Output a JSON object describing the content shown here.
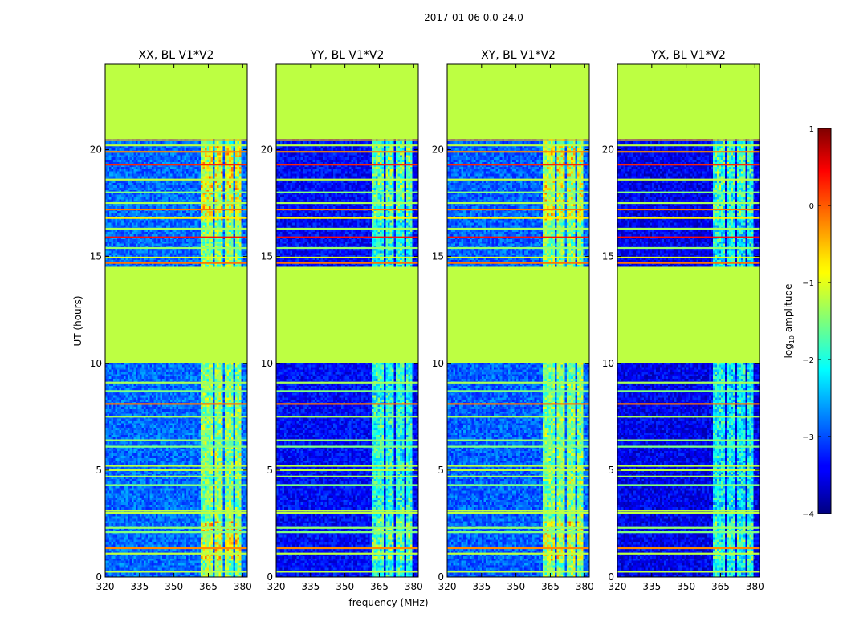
{
  "chart_data": {
    "type": "heatmap",
    "suptitle": "2017-01-06 0.0-24.0",
    "xlabel": "frequency (MHz)",
    "ylabel": "UT (hours)",
    "xlim": [
      320,
      382
    ],
    "ylim": [
      0,
      24
    ],
    "xticks": [
      320,
      335,
      350,
      365,
      380
    ],
    "yticks": [
      0,
      5,
      10,
      15,
      20
    ],
    "panels": [
      {
        "title": "XX, BL V1*V2",
        "base_level": -2.85,
        "band_boost": 1.9,
        "dense_band_boost": 2.5
      },
      {
        "title": "YY, BL V1*V2",
        "base_level": -3.35,
        "band_boost": 1.9,
        "dense_band_boost": 2.3
      },
      {
        "title": "XY, BL V1*V2",
        "base_level": -2.9,
        "band_boost": 1.9,
        "dense_band_boost": 2.5
      },
      {
        "title": "YX, BL V1*V2",
        "base_level": -3.45,
        "band_boost": 1.8,
        "dense_band_boost": 2.2
      }
    ],
    "flagged_value": -1.2,
    "flagged_ut_ranges": [
      [
        10.05,
        14.55
      ],
      [
        20.55,
        24.0
      ]
    ],
    "rfi_band_mhz": [
      [
        362,
        366.5
      ],
      [
        367.5,
        371
      ],
      [
        372,
        376
      ],
      [
        377,
        379.5
      ]
    ],
    "dense_band_ut_ranges": [
      [
        0.8,
        2.6
      ],
      [
        16.7,
        20.2
      ]
    ],
    "horizontal_lines": [
      {
        "ut": 0.25,
        "value": -1.2
      },
      {
        "ut": 1.1,
        "value": -1.2
      },
      {
        "ut": 1.35,
        "value": -0.3
      },
      {
        "ut": 2.1,
        "value": -1.5
      },
      {
        "ut": 2.3,
        "value": -1.4
      },
      {
        "ut": 3.0,
        "value": -1.2
      },
      {
        "ut": 3.1,
        "value": -1.2
      },
      {
        "ut": 4.3,
        "value": -1.5
      },
      {
        "ut": 4.7,
        "value": -1.3
      },
      {
        "ut": 5.0,
        "value": -1.2
      },
      {
        "ut": 5.2,
        "value": -1.2
      },
      {
        "ut": 6.1,
        "value": -1.5
      },
      {
        "ut": 6.4,
        "value": -1.4
      },
      {
        "ut": 7.5,
        "value": -1.3
      },
      {
        "ut": 8.1,
        "value": -0.2
      },
      {
        "ut": 8.7,
        "value": -1.5
      },
      {
        "ut": 9.1,
        "value": -1.3
      },
      {
        "ut": 14.7,
        "value": -0.2
      },
      {
        "ut": 14.95,
        "value": -1.0
      },
      {
        "ut": 15.4,
        "value": -1.4
      },
      {
        "ut": 15.9,
        "value": 0.3
      },
      {
        "ut": 16.3,
        "value": -1.3
      },
      {
        "ut": 16.8,
        "value": -0.8
      },
      {
        "ut": 17.2,
        "value": -0.2
      },
      {
        "ut": 17.5,
        "value": -1.3
      },
      {
        "ut": 18.0,
        "value": -1.5
      },
      {
        "ut": 18.6,
        "value": -1.2
      },
      {
        "ut": 19.3,
        "value": 0.2
      },
      {
        "ut": 19.9,
        "value": -0.3
      },
      {
        "ut": 20.2,
        "value": -1.2
      },
      {
        "ut": 20.45,
        "value": -0.5
      }
    ],
    "colorbar": {
      "label_prefix": "log",
      "label_subscript": "10",
      "label_suffix": " amplitude",
      "range": [
        -4,
        1
      ],
      "ticks": [
        "1",
        "0",
        "−1",
        "−2",
        "−3",
        "−4"
      ],
      "colormap": "jet"
    }
  }
}
